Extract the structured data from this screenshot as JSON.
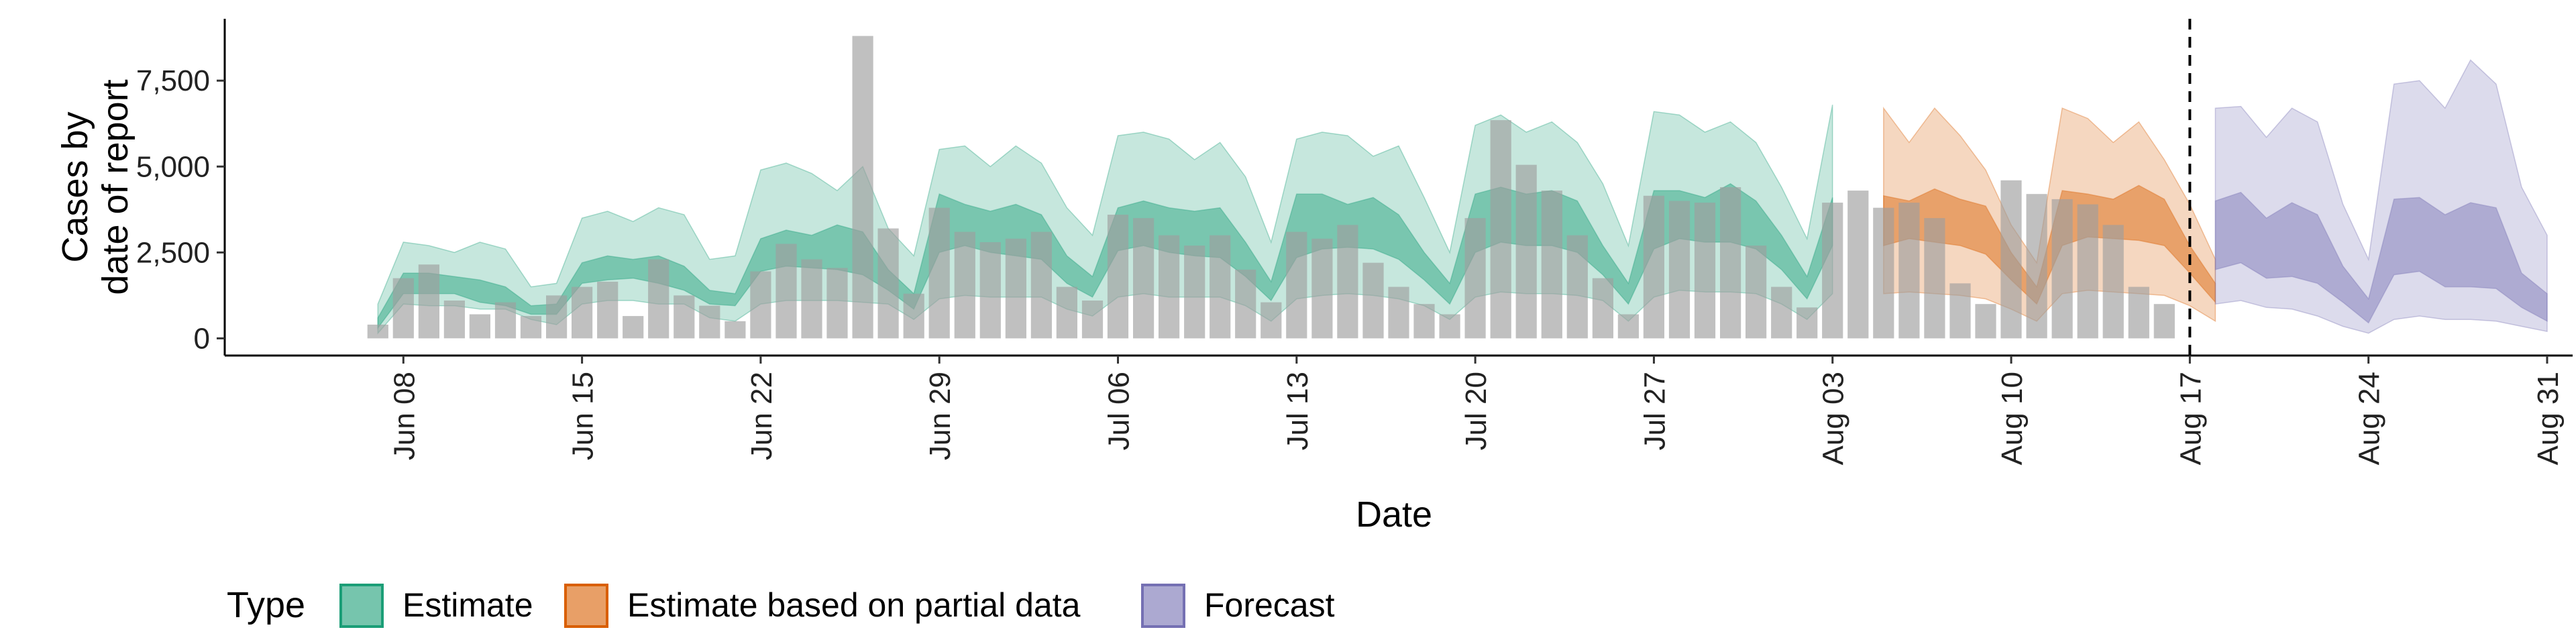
{
  "chart_data": {
    "type": "bar",
    "xlabel": "Date",
    "ylabel_lines": [
      "Cases by",
      "date of report"
    ],
    "ylim": [
      -500,
      9300
    ],
    "y_ticks": [
      0,
      2500,
      5000,
      7500
    ],
    "y_tick_labels": [
      "0",
      "2,500",
      "5,000",
      "7,500"
    ],
    "x_domain": [
      "2020-06-01",
      "2020-09-01"
    ],
    "x_ticks": [
      "2020-06-08",
      "2020-06-15",
      "2020-06-22",
      "2020-06-29",
      "2020-07-06",
      "2020-07-13",
      "2020-07-20",
      "2020-07-27",
      "2020-08-03",
      "2020-08-10",
      "2020-08-17",
      "2020-08-24",
      "2020-08-31"
    ],
    "x_tick_labels": [
      "Jun 08",
      "Jun 15",
      "Jun 22",
      "Jun 29",
      "Jul 06",
      "Jul 13",
      "Jul 20",
      "Jul 27",
      "Aug 03",
      "Aug 10",
      "Aug 17",
      "Aug 24",
      "Aug 31"
    ],
    "vline_date": "2020-08-17",
    "bar_start_date": "2020-06-07",
    "reported_cases": [
      400,
      1750,
      2150,
      1100,
      700,
      1050,
      650,
      1250,
      1500,
      1650,
      650,
      2300,
      1250,
      950,
      500,
      1950,
      2750,
      2300,
      2050,
      8800,
      3200,
      1300,
      3800,
      3100,
      2800,
      2900,
      3100,
      1500,
      1100,
      3600,
      3500,
      3000,
      2700,
      3000,
      2000,
      1050,
      3100,
      2900,
      3300,
      2200,
      1500,
      1000,
      700,
      3500,
      6350,
      5050,
      4300,
      3000,
      1750,
      700,
      4150,
      4000,
      3950,
      4400,
      2700,
      1500,
      900,
      3950,
      4300,
      3800,
      3950,
      3500,
      1600,
      1000,
      4600,
      4200,
      4050,
      3900,
      3300,
      1500,
      1000
    ],
    "series": [
      {
        "name": "Estimate",
        "color": "#1B9E77",
        "start_date": "2020-06-07",
        "lower90": [
          150,
          1000,
          950,
          950,
          850,
          850,
          550,
          400,
          1000,
          1100,
          1100,
          1000,
          1000,
          600,
          500,
          1000,
          1100,
          1100,
          1100,
          1050,
          1000,
          550,
          1150,
          1250,
          1200,
          1200,
          1200,
          850,
          650,
          1200,
          1300,
          1200,
          1200,
          1200,
          950,
          500,
          1150,
          1250,
          1300,
          1250,
          1150,
          950,
          550,
          1200,
          1350,
          1300,
          1300,
          1250,
          1100,
          500,
          1200,
          1400,
          1350,
          1350,
          1300,
          1000,
          550,
          1300
        ],
        "lower50": [
          300,
          1300,
          1300,
          1300,
          1050,
          950,
          700,
          700,
          1600,
          1700,
          1750,
          1600,
          1400,
          1000,
          950,
          1950,
          2100,
          2050,
          2000,
          1850,
          1400,
          850,
          2500,
          2700,
          2500,
          2400,
          2300,
          1600,
          1200,
          2550,
          2700,
          2500,
          2400,
          2350,
          1800,
          1100,
          2350,
          2600,
          2650,
          2600,
          2300,
          1700,
          1000,
          2500,
          2800,
          2700,
          2700,
          2500,
          1850,
          1000,
          2600,
          2900,
          2800,
          2800,
          2600,
          2000,
          1150,
          2700
        ],
        "upper50": [
          600,
          1900,
          1900,
          1800,
          1700,
          1500,
          950,
          1000,
          2200,
          2400,
          2300,
          2400,
          2100,
          1400,
          1300,
          2900,
          3150,
          3000,
          3300,
          3100,
          2000,
          1300,
          4200,
          3900,
          3700,
          3900,
          3600,
          2400,
          1800,
          3800,
          4000,
          3800,
          3700,
          3800,
          2800,
          1650,
          4200,
          4200,
          3900,
          4100,
          3600,
          2500,
          1600,
          4200,
          4400,
          4200,
          4300,
          4000,
          2700,
          1600,
          4300,
          4300,
          4100,
          4500,
          4000,
          3000,
          1800,
          4100
        ],
        "upper90": [
          1000,
          2800,
          2700,
          2500,
          2800,
          2600,
          1500,
          1600,
          3500,
          3700,
          3400,
          3800,
          3600,
          2300,
          2400,
          4900,
          5100,
          4800,
          4300,
          5000,
          3200,
          2400,
          5500,
          5600,
          5000,
          5600,
          5100,
          3800,
          3000,
          5900,
          6000,
          5800,
          5200,
          5700,
          4700,
          2800,
          5800,
          6000,
          5900,
          5300,
          5600,
          4100,
          2500,
          6200,
          6500,
          6000,
          6300,
          5700,
          4500,
          2700,
          6600,
          6500,
          6000,
          6300,
          5700,
          4400,
          2900,
          6800
        ]
      },
      {
        "name": "Estimate based on partial data",
        "color": "#D95F02",
        "start_date": "2020-08-05",
        "lower90": [
          1300,
          1350,
          1300,
          1250,
          1150,
          850,
          500,
          1300,
          1400,
          1350,
          1300,
          1250,
          950,
          500
        ],
        "lower50": [
          2700,
          2900,
          2800,
          2700,
          2450,
          1700,
          1000,
          2700,
          2950,
          2900,
          2850,
          2700,
          1900,
          1050
        ],
        "upper50": [
          4150,
          4000,
          4350,
          4050,
          3850,
          2500,
          1500,
          4300,
          4200,
          4050,
          4450,
          4050,
          2700,
          1600
        ],
        "upper90": [
          6700,
          5700,
          6700,
          5900,
          4900,
          3300,
          2200,
          6700,
          6400,
          5700,
          6300,
          5200,
          3900,
          2300
        ]
      },
      {
        "name": "Forecast",
        "color": "#7570B3",
        "start_date": "2020-08-18",
        "lower90": [
          1000,
          1100,
          900,
          850,
          650,
          350,
          150,
          550,
          650,
          550,
          550,
          500,
          350,
          200
        ],
        "lower50": [
          2000,
          2200,
          1750,
          1800,
          1600,
          1050,
          450,
          1850,
          1950,
          1500,
          1500,
          1450,
          900,
          500
        ],
        "upper50": [
          4000,
          4250,
          3500,
          3950,
          3600,
          2100,
          1150,
          4050,
          4100,
          3600,
          3950,
          3800,
          1900,
          1300
        ],
        "upper90": [
          6700,
          6750,
          5850,
          6700,
          6300,
          3900,
          2300,
          7400,
          7500,
          6700,
          8100,
          7400,
          4400,
          3000
        ]
      }
    ],
    "legend": {
      "title": "Type",
      "position": "bottom",
      "items": [
        "Estimate",
        "Estimate based on partial data",
        "Forecast"
      ]
    },
    "bar_color": "#9E9E9E"
  }
}
